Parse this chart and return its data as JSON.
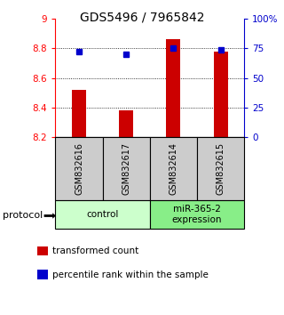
{
  "title": "GDS5496 / 7965842",
  "samples": [
    "GSM832616",
    "GSM832617",
    "GSM832614",
    "GSM832615"
  ],
  "transformed_counts": [
    8.52,
    8.38,
    8.86,
    8.78
  ],
  "percentile_ranks": [
    72,
    70,
    75,
    74
  ],
  "bar_color": "#cc0000",
  "marker_color": "#0000cc",
  "ylim_left": [
    8.2,
    9.0
  ],
  "ylim_right": [
    0,
    100
  ],
  "yticks_left": [
    8.2,
    8.4,
    8.6,
    8.8,
    9.0
  ],
  "ytick_labels_left": [
    "8.2",
    "8.4",
    "8.6",
    "8.8",
    "9"
  ],
  "yticks_right": [
    0,
    25,
    50,
    75,
    100
  ],
  "ytick_labels_right": [
    "0",
    "25",
    "50",
    "75",
    "100%"
  ],
  "groups": [
    {
      "label": "control",
      "indices": [
        0,
        1
      ],
      "color": "#ccffcc"
    },
    {
      "label": "miR-365-2\nexpression",
      "indices": [
        2,
        3
      ],
      "color": "#88ee88"
    }
  ],
  "protocol_label": "protocol",
  "legend_items": [
    {
      "color": "#cc0000",
      "label": "transformed count"
    },
    {
      "color": "#0000cc",
      "label": "percentile rank within the sample"
    }
  ],
  "sample_area_color": "#cccccc",
  "bar_bottom": 8.2,
  "gridline_values": [
    8.4,
    8.6,
    8.8
  ],
  "background_color": "#ffffff",
  "bar_width": 0.3
}
